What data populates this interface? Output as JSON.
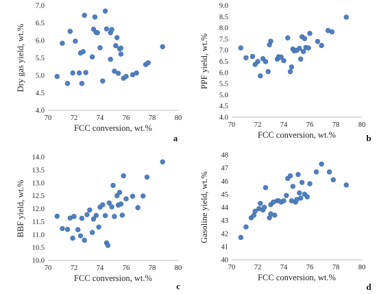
{
  "chart_data": [
    {
      "type": "scatter",
      "panel_label": "a",
      "xlabel": "FCC conversion, wt.%",
      "ylabel": "Dry gas yield, wt.%",
      "xlim": [
        70,
        80
      ],
      "ylim": [
        4.0,
        7.0
      ],
      "xticks": [
        "70",
        "72",
        "74",
        "76",
        "78",
        "80"
      ],
      "yticks": [
        "4.0",
        "4.5",
        "5.0",
        "5.5",
        "6.0",
        "6.5",
        "7.0"
      ],
      "grid": false,
      "x": [
        70.7,
        71.1,
        71.5,
        71.7,
        71.9,
        72.1,
        72.4,
        72.5,
        72.6,
        72.7,
        72.8,
        72.9,
        73.4,
        73.5,
        73.6,
        73.7,
        73.8,
        74.0,
        74.2,
        74.4,
        74.5,
        74.8,
        74.8,
        74.9,
        75.1,
        75.2,
        75.3,
        75.4,
        75.5,
        75.6,
        75.6,
        75.8,
        76.0,
        76.5,
        76.8,
        77.5,
        77.7,
        78.8
      ],
      "y": [
        4.97,
        5.92,
        4.77,
        6.26,
        5.07,
        5.98,
        5.07,
        5.64,
        4.77,
        5.68,
        6.72,
        5.08,
        5.53,
        6.32,
        6.67,
        6.23,
        6.22,
        5.79,
        4.84,
        6.84,
        6.33,
        5.46,
        6.22,
        6.31,
        5.12,
        5.85,
        6.08,
        5.06,
        5.76,
        5.61,
        5.78,
        4.92,
        4.97,
        5.02,
        5.07,
        5.31,
        5.36,
        5.82
      ]
    },
    {
      "type": "scatter",
      "panel_label": "b",
      "xlabel": "FCC conversion, wt.%",
      "ylabel": "PPF yield, wt.%",
      "xlim": [
        70,
        80
      ],
      "ylim": [
        4.0,
        9.0
      ],
      "xticks": [
        "70",
        "72",
        "74",
        "76",
        "78",
        "80"
      ],
      "yticks": [
        "4.0",
        "4.5",
        "5.0",
        "5.5",
        "6.0",
        "6.5",
        "7.0",
        "7.5",
        "8.0",
        "8.5",
        "9.0"
      ],
      "grid": false,
      "x": [
        70.7,
        71.1,
        71.6,
        71.8,
        72.0,
        72.2,
        72.4,
        72.6,
        72.8,
        72.9,
        73.0,
        73.5,
        73.6,
        73.7,
        73.8,
        74.0,
        74.3,
        74.5,
        74.6,
        74.7,
        74.8,
        74.9,
        75.0,
        75.2,
        75.3,
        75.4,
        75.5,
        75.6,
        75.7,
        75.9,
        76.0,
        76.6,
        76.9,
        77.4,
        77.7,
        78.8
      ],
      "y": [
        7.1,
        6.66,
        6.72,
        6.36,
        6.49,
        5.85,
        6.62,
        6.49,
        6.04,
        7.24,
        7.4,
        6.6,
        6.7,
        6.69,
        6.69,
        6.53,
        7.55,
        6.04,
        6.25,
        7.05,
        6.97,
        6.99,
        6.99,
        7.08,
        6.6,
        7.6,
        6.94,
        7.52,
        7.12,
        7.1,
        7.75,
        7.39,
        7.21,
        7.88,
        7.82,
        8.48
      ]
    },
    {
      "type": "scatter",
      "panel_label": "c",
      "xlabel": "FCC conversion, wt.%",
      "ylabel": "BBF yield, wt.%",
      "xlim": [
        70,
        80
      ],
      "ylim": [
        10.0,
        14.0
      ],
      "xticks": [
        "70",
        "72",
        "74",
        "76",
        "78",
        "80"
      ],
      "yticks": [
        "10.0",
        "10.5",
        "11.0",
        "11.5",
        "12.0",
        "12.5",
        "13.0",
        "13.5",
        "14.0"
      ],
      "grid": false,
      "x": [
        70.7,
        71.1,
        71.5,
        71.7,
        71.9,
        72.0,
        72.3,
        72.5,
        72.6,
        72.8,
        73.0,
        73.2,
        73.4,
        73.5,
        73.7,
        73.9,
        74.0,
        74.2,
        74.4,
        74.5,
        74.6,
        74.7,
        74.9,
        75.0,
        75.1,
        75.3,
        75.4,
        75.5,
        75.6,
        75.7,
        75.8,
        76.0,
        76.5,
        76.9,
        77.3,
        77.6,
        78.8
      ],
      "y": [
        11.71,
        11.23,
        11.2,
        11.64,
        10.86,
        11.7,
        11.19,
        10.95,
        11.63,
        10.78,
        11.77,
        11.95,
        11.08,
        11.6,
        11.74,
        11.29,
        12.06,
        12.15,
        11.73,
        10.68,
        10.58,
        12.22,
        12.07,
        12.9,
        11.7,
        12.5,
        12.14,
        12.63,
        12.18,
        11.75,
        13.27,
        12.38,
        12.48,
        12.04,
        12.49,
        13.22,
        13.81
      ]
    },
    {
      "type": "scatter",
      "panel_label": "d",
      "xlabel": "FCC conversion, wt.%",
      "ylabel": "Gasoline yield, wt.%",
      "xlim": [
        70,
        80
      ],
      "ylim": [
        40,
        48
      ],
      "xticks": [
        "70",
        "72",
        "74",
        "76",
        "78",
        "80"
      ],
      "yticks": [
        "40",
        "41",
        "42",
        "43",
        "44",
        "45",
        "46",
        "47",
        "48"
      ],
      "grid": false,
      "x": [
        70.7,
        71.1,
        71.5,
        71.7,
        71.8,
        72.1,
        72.2,
        72.4,
        72.5,
        72.6,
        72.9,
        73.0,
        73.0,
        73.2,
        73.3,
        73.5,
        73.6,
        73.8,
        74.0,
        74.2,
        74.3,
        74.5,
        74.6,
        74.7,
        74.9,
        75.0,
        75.1,
        75.2,
        75.3,
        75.4,
        75.6,
        75.8,
        76.0,
        76.5,
        76.9,
        77.5,
        77.8,
        78.8
      ],
      "y": [
        41.7,
        42.5,
        43.2,
        43.4,
        43.7,
        43.9,
        44.3,
        43.8,
        44.0,
        45.5,
        43.2,
        43.5,
        44.2,
        44.4,
        43.4,
        44.5,
        44.5,
        44.4,
        44.5,
        44.9,
        46.2,
        46.4,
        44.5,
        45.6,
        44.4,
        44.6,
        46.5,
        45.1,
        44.7,
        45.9,
        45.0,
        44.8,
        45.8,
        46.7,
        47.3,
        46.7,
        46.1,
        45.7
      ]
    }
  ]
}
